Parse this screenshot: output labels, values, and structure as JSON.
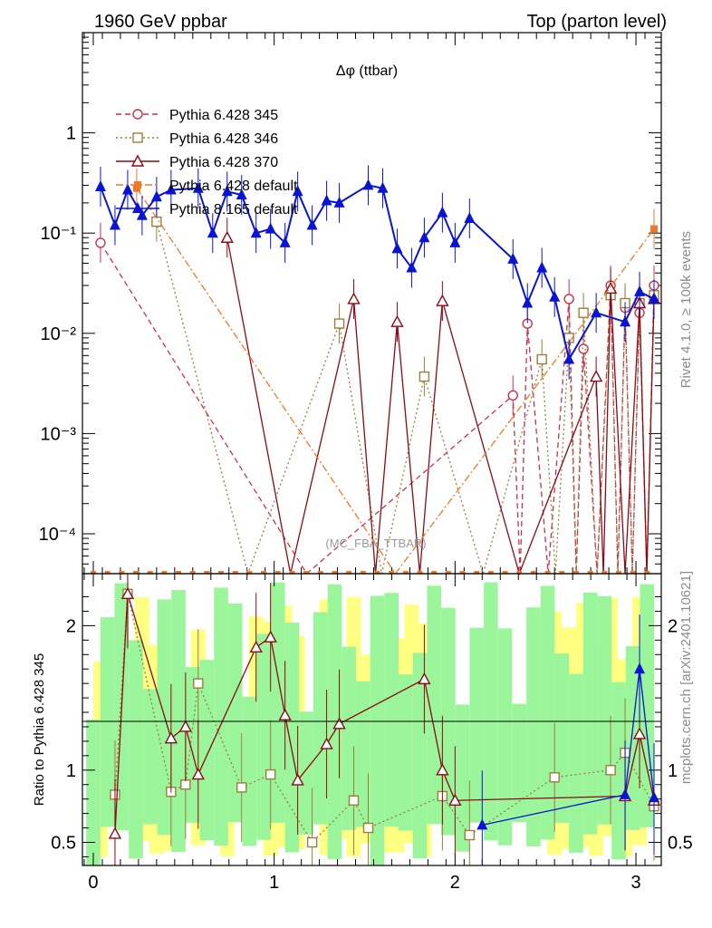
{
  "header": {
    "left": "1960 GeV ppbar",
    "right": "Top (parton level)"
  },
  "side": {
    "rivet": "Rivet 4.1.0, ≥ 100k events",
    "site": "mcplots.cern.ch [arXiv:2401.10621]"
  },
  "chart_data": {
    "type": "line",
    "title": "Δφ (ttbar)",
    "watermark": "(MC_FBA_TTBAR)",
    "xlabel": "",
    "ylabel_upper": "",
    "ylabel_lower": "Ratio to Pythia 6.428 345",
    "xlim": [
      -0.06,
      3.14
    ],
    "ylim_upper": [
      4e-05,
      10
    ],
    "yscale_upper": "log",
    "ylim_lower": [
      0.34,
      2.36
    ],
    "x_ticks": [
      "0",
      "1",
      "2",
      "3"
    ],
    "upper_y_ticks": [
      "10⁻⁴",
      "10⁻³",
      "10⁻²",
      "10⁻¹",
      "1"
    ],
    "lower_y_ticks": [
      "0.5",
      "1",
      "2"
    ],
    "legend_position": "top-left",
    "series": [
      {
        "name": "Pythia 6.428 345",
        "color": "#c8324b",
        "style": "dashed",
        "marker": "open-circle",
        "points": [
          {
            "x": 0.04,
            "y": 0.08
          },
          {
            "x": 2.32,
            "y": 0.0024
          },
          {
            "x": 2.4,
            "y": 0.0125
          },
          {
            "x": 2.63,
            "y": 0.022
          },
          {
            "x": 2.71,
            "y": 0.007
          },
          {
            "x": 2.86,
            "y": 0.03
          },
          {
            "x": 2.94,
            "y": 0.018
          },
          {
            "x": 3.02,
            "y": 0.016
          },
          {
            "x": 3.1,
            "y": 0.03
          }
        ]
      },
      {
        "name": "Pythia 6.428 346",
        "color": "#9b7d3c",
        "style": "dotted",
        "marker": "open-square",
        "points": [
          {
            "x": 0.35,
            "y": 0.13
          },
          {
            "x": 1.36,
            "y": 0.0125
          },
          {
            "x": 1.83,
            "y": 0.0037
          },
          {
            "x": 2.48,
            "y": 0.0055
          },
          {
            "x": 2.63,
            "y": 0.009
          },
          {
            "x": 2.71,
            "y": 0.016
          },
          {
            "x": 2.86,
            "y": 0.024
          },
          {
            "x": 2.94,
            "y": 0.02
          },
          {
            "x": 3.02,
            "y": 0.02
          },
          {
            "x": 3.1,
            "y": 0.024
          }
        ]
      },
      {
        "name": "Pythia 6.428 370",
        "color": "#8c0a14",
        "style": "solid",
        "marker": "open-triangle",
        "points": [
          {
            "x": 0.74,
            "y": 0.09
          },
          {
            "x": 1.44,
            "y": 0.022
          },
          {
            "x": 1.68,
            "y": 0.013
          },
          {
            "x": 1.93,
            "y": 0.021
          },
          {
            "x": 2.78,
            "y": 0.0037
          },
          {
            "x": 2.86,
            "y": 0.028
          },
          {
            "x": 3.02,
            "y": 0.02
          },
          {
            "x": 3.1,
            "y": 0.022
          }
        ]
      },
      {
        "name": "Pythia 6.428 default",
        "color": "#f07828",
        "style": "dashdot",
        "marker": "filled-square",
        "points": [
          {
            "x": 0.24,
            "y": 0.28
          },
          {
            "x": 3.1,
            "y": 0.11
          }
        ]
      },
      {
        "name": "Pythia 8.165 default",
        "color": "#0a14d2",
        "style": "solid",
        "marker": "filled-triangle",
        "points": [
          {
            "x": 0.04,
            "y": 0.29
          },
          {
            "x": 0.12,
            "y": 0.12
          },
          {
            "x": 0.19,
            "y": 0.27
          },
          {
            "x": 0.27,
            "y": 0.15
          },
          {
            "x": 0.35,
            "y": 0.23
          },
          {
            "x": 0.43,
            "y": 0.27
          },
          {
            "x": 0.58,
            "y": 0.28
          },
          {
            "x": 0.66,
            "y": 0.1
          },
          {
            "x": 0.74,
            "y": 0.26
          },
          {
            "x": 0.82,
            "y": 0.24
          },
          {
            "x": 0.9,
            "y": 0.1
          },
          {
            "x": 0.98,
            "y": 0.11
          },
          {
            "x": 1.06,
            "y": 0.08
          },
          {
            "x": 1.13,
            "y": 0.26
          },
          {
            "x": 1.21,
            "y": 0.12
          },
          {
            "x": 1.29,
            "y": 0.21
          },
          {
            "x": 1.36,
            "y": 0.2
          },
          {
            "x": 1.52,
            "y": 0.3
          },
          {
            "x": 1.6,
            "y": 0.28
          },
          {
            "x": 1.68,
            "y": 0.07
          },
          {
            "x": 1.76,
            "y": 0.045
          },
          {
            "x": 1.83,
            "y": 0.09
          },
          {
            "x": 1.93,
            "y": 0.16
          },
          {
            "x": 2.0,
            "y": 0.08
          },
          {
            "x": 2.08,
            "y": 0.14
          },
          {
            "x": 2.32,
            "y": 0.055
          },
          {
            "x": 2.4,
            "y": 0.02
          },
          {
            "x": 2.48,
            "y": 0.045
          },
          {
            "x": 2.55,
            "y": 0.023
          },
          {
            "x": 2.63,
            "y": 0.0055
          },
          {
            "x": 2.78,
            "y": 0.016
          },
          {
            "x": 2.94,
            "y": 0.013
          },
          {
            "x": 3.02,
            "y": 0.026
          },
          {
            "x": 3.1,
            "y": 0.022
          }
        ]
      }
    ],
    "ratio_series": [
      {
        "name": "Pythia 6.428 346",
        "points": [
          {
            "x": 0.12,
            "y": 0.83
          },
          {
            "x": 0.19,
            "y": 2.22
          },
          {
            "x": 0.43,
            "y": 0.85
          },
          {
            "x": 0.51,
            "y": 0.9
          },
          {
            "x": 0.58,
            "y": 1.6
          },
          {
            "x": 0.82,
            "y": 0.88
          },
          {
            "x": 0.98,
            "y": 0.97
          },
          {
            "x": 1.21,
            "y": 0.5
          },
          {
            "x": 1.44,
            "y": 0.79
          },
          {
            "x": 1.52,
            "y": 0.6
          },
          {
            "x": 1.93,
            "y": 0.82
          },
          {
            "x": 2.08,
            "y": 0.55
          },
          {
            "x": 2.55,
            "y": 0.95
          },
          {
            "x": 2.86,
            "y": 1.0
          },
          {
            "x": 2.94,
            "y": 1.12
          },
          {
            "x": 3.1,
            "y": 0.75
          }
        ]
      },
      {
        "name": "Pythia 6.428 370",
        "points": [
          {
            "x": 0.12,
            "y": 0.56
          },
          {
            "x": 0.19,
            "y": 2.22
          },
          {
            "x": 0.43,
            "y": 1.22
          },
          {
            "x": 0.51,
            "y": 1.3
          },
          {
            "x": 0.58,
            "y": 0.97
          },
          {
            "x": 0.9,
            "y": 1.85
          },
          {
            "x": 0.98,
            "y": 1.92
          },
          {
            "x": 1.06,
            "y": 1.38
          },
          {
            "x": 1.13,
            "y": 0.93
          },
          {
            "x": 1.29,
            "y": 1.18
          },
          {
            "x": 1.36,
            "y": 1.32
          },
          {
            "x": 1.83,
            "y": 1.63
          },
          {
            "x": 1.93,
            "y": 1.0
          },
          {
            "x": 2.0,
            "y": 0.79
          },
          {
            "x": 2.94,
            "y": 0.82
          },
          {
            "x": 3.02,
            "y": 1.25
          },
          {
            "x": 3.1,
            "y": 0.79
          }
        ]
      },
      {
        "name": "Pythia 8.165 default",
        "points": [
          {
            "x": 2.15,
            "y": 0.62
          },
          {
            "x": 2.94,
            "y": 0.83
          },
          {
            "x": 3.02,
            "y": 1.7
          },
          {
            "x": 3.1,
            "y": 0.81
          }
        ]
      }
    ]
  }
}
